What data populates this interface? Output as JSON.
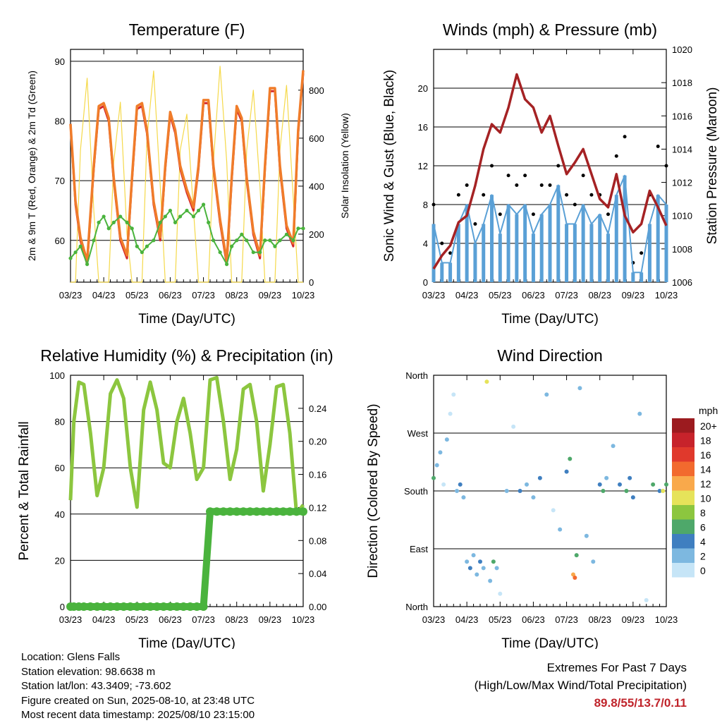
{
  "x_ticks": [
    "03/23",
    "04/23",
    "05/23",
    "06/23",
    "07/23",
    "08/23",
    "09/23",
    "10/23"
  ],
  "chart_data": [
    {
      "id": "temp",
      "type": "line",
      "title": "Temperature (F)",
      "xlabel": "Time (Day/UTC)",
      "ylabel": "2m & 9m T (Red, Orange) & 2m Td (Green)",
      "y2label": "Solar Insolation (Yellow)",
      "ylim": [
        53,
        92
      ],
      "y_ticks": [
        60,
        70,
        80,
        90
      ],
      "y2lim": [
        0,
        970
      ],
      "y2_ticks": [
        0,
        200,
        400,
        600,
        800
      ],
      "x": [
        0,
        0.15,
        0.3,
        0.5,
        0.7,
        0.85,
        1.0,
        1.15,
        1.3,
        1.5,
        1.7,
        1.85,
        2.0,
        2.15,
        2.3,
        2.5,
        2.7,
        2.85,
        3.0,
        3.15,
        3.3,
        3.5,
        3.7,
        3.85,
        4.0,
        4.15,
        4.3,
        4.5,
        4.7,
        4.85,
        5.0,
        5.15,
        5.3,
        5.5,
        5.7,
        5.85,
        6.0,
        6.15,
        6.3,
        6.5,
        6.7,
        6.85,
        7.0
      ],
      "series": [
        {
          "name": "2m T",
          "color": "#d4262a",
          "values": [
            79.5,
            66,
            60,
            56,
            72,
            82,
            82.5,
            80,
            70,
            60,
            57,
            70,
            82,
            82.5,
            78,
            66,
            60,
            72,
            81,
            78,
            72,
            68,
            65,
            72,
            83,
            83,
            72,
            63,
            56,
            70,
            82,
            80,
            70,
            61,
            57,
            72,
            85,
            85,
            72,
            62,
            59,
            78,
            88
          ]
        },
        {
          "name": "9m T",
          "color": "#f07c2a",
          "values": [
            79.5,
            66.5,
            60.5,
            56.5,
            72.5,
            82.5,
            83,
            80.5,
            70.5,
            60.5,
            57.5,
            70.5,
            82.5,
            83,
            78.5,
            66.5,
            60.5,
            72.5,
            81.5,
            78.5,
            72.5,
            68.5,
            65.5,
            72.5,
            83.5,
            83.5,
            72.5,
            63.5,
            56.5,
            70.5,
            82.5,
            80.5,
            70.5,
            61.5,
            57.5,
            72.5,
            85.5,
            85.5,
            72.5,
            62.5,
            59.5,
            78.5,
            88.5
          ]
        },
        {
          "name": "2m Td",
          "color": "#4ab33d",
          "values": [
            57,
            58,
            59,
            56,
            60,
            63,
            64,
            62,
            63,
            64,
            63,
            62,
            59,
            58,
            59,
            60,
            63,
            64,
            65,
            63,
            64,
            65,
            64,
            65,
            66,
            63,
            60,
            58,
            56,
            59,
            60,
            61,
            60,
            58,
            58,
            60,
            60,
            59,
            60,
            61,
            60,
            62,
            62
          ]
        },
        {
          "name": "Solar",
          "color": "#f5d94a",
          "values": [
            0,
            0,
            550,
            850,
            300,
            0,
            0,
            0,
            500,
            750,
            200,
            0,
            0,
            0,
            600,
            880,
            400,
            0,
            0,
            0,
            550,
            700,
            300,
            0,
            0,
            0,
            500,
            900,
            500,
            0,
            0,
            0,
            550,
            800,
            400,
            0,
            0,
            0,
            550,
            820,
            350,
            0,
            0
          ],
          "axis": "y2"
        }
      ]
    },
    {
      "id": "wind",
      "type": "scatter",
      "title": "Winds (mph) & Pressure (mb)",
      "xlabel": "Time (Day/UTC)",
      "ylabel": "Sonic Wind & Gust (Blue, Black)",
      "y2label": "Station Pressure (Maroon)",
      "ylim": [
        0,
        24
      ],
      "y_ticks": [
        0,
        4,
        8,
        12,
        16,
        20
      ],
      "y2lim": [
        1006,
        1020
      ],
      "y2_ticks": [
        1006,
        1008,
        1010,
        1012,
        1014,
        1016,
        1018,
        1020
      ],
      "x": [
        0,
        0.25,
        0.5,
        0.75,
        1.0,
        1.25,
        1.5,
        1.75,
        2.0,
        2.25,
        2.5,
        2.75,
        3.0,
        3.25,
        3.5,
        3.75,
        4.0,
        4.25,
        4.5,
        4.75,
        5.0,
        5.25,
        5.5,
        5.75,
        6.0,
        6.25,
        6.5,
        6.75,
        7.0
      ],
      "series": [
        {
          "name": "Gust",
          "color": "#000000",
          "values": [
            8,
            4,
            3,
            9,
            10,
            6,
            9,
            12,
            7,
            11,
            10,
            11,
            7,
            10,
            10,
            12,
            9,
            8,
            11,
            9,
            9,
            7,
            13,
            15,
            2,
            3,
            9,
            14,
            12
          ]
        },
        {
          "name": "Sonic Wind",
          "color": "#5aa0d6",
          "values": [
            6,
            2,
            2,
            6,
            8,
            4,
            6,
            9,
            5,
            8,
            7,
            8,
            5,
            7,
            8,
            10,
            6,
            6,
            8,
            6,
            7,
            5,
            9,
            11,
            1,
            1,
            6,
            9,
            8
          ]
        },
        {
          "name": "Pressure",
          "color": "#a52224",
          "values": [
            1006.8,
            1007.6,
            1008.2,
            1009.6,
            1010.0,
            1011.8,
            1014.0,
            1015.5,
            1015.0,
            1016.5,
            1018.5,
            1017.0,
            1016.5,
            1015.0,
            1016.0,
            1014.2,
            1012.5,
            1013.2,
            1014.0,
            1012.5,
            1011.0,
            1010.5,
            1012.5,
            1010.0,
            1009.0,
            1009.5,
            1011.5,
            1010.5,
            1009.4
          ],
          "axis": "y2"
        }
      ]
    },
    {
      "id": "rh",
      "type": "line",
      "title": "Relative Humidity (%) & Precipitation (in)",
      "xlabel": "Time (Day/UTC)",
      "ylabel": "Percent & Total Rainfall",
      "ylim": [
        0,
        100
      ],
      "y_ticks": [
        0,
        20,
        40,
        60,
        80,
        100
      ],
      "y2lim": [
        0,
        0.28
      ],
      "y2_ticks": [
        0.0,
        0.04,
        0.08,
        0.12,
        0.16,
        0.2,
        0.24
      ],
      "x": [
        0,
        0.1,
        0.25,
        0.4,
        0.6,
        0.8,
        1.0,
        1.2,
        1.4,
        1.6,
        1.8,
        2.0,
        2.2,
        2.4,
        2.6,
        2.8,
        3.0,
        3.2,
        3.4,
        3.6,
        3.8,
        4.0,
        4.2,
        4.4,
        4.6,
        4.8,
        5.0,
        5.2,
        5.4,
        5.6,
        5.8,
        6.0,
        6.2,
        6.4,
        6.6,
        6.8,
        7.0
      ],
      "series": [
        {
          "name": "RH",
          "color": "#8cc63f",
          "values": [
            46,
            80,
            97,
            96,
            75,
            48,
            60,
            92,
            98,
            90,
            60,
            43,
            85,
            97,
            85,
            62,
            60,
            80,
            90,
            75,
            55,
            60,
            98,
            99,
            80,
            55,
            68,
            94,
            96,
            80,
            50,
            70,
            95,
            96,
            75,
            40,
            44
          ]
        },
        {
          "name": "Total Precipitation",
          "color": "#4ab33d",
          "values": [
            0,
            0,
            0,
            0,
            0,
            0,
            0,
            0,
            0,
            0,
            0,
            0,
            0,
            0,
            0,
            0,
            0,
            0,
            0,
            0,
            0,
            0,
            0.115,
            0.115,
            0.115,
            0.115,
            0.115,
            0.115,
            0.115,
            0.115,
            0.115,
            0.115,
            0.115,
            0.115,
            0.115,
            0.115,
            0.115
          ],
          "axis": "y2"
        }
      ]
    },
    {
      "id": "dir",
      "type": "scatter",
      "title": "Wind Direction",
      "xlabel": "Time (Day/UTC)",
      "ylabel": "Direction (Colored By Speed)",
      "y_tick_labels": [
        "North",
        "East",
        "South",
        "West",
        "North"
      ],
      "ylim": [
        0,
        360
      ],
      "legend": {
        "title": "mph",
        "labels": [
          "20+",
          "18",
          "16",
          "14",
          "12",
          "10",
          "8",
          "6",
          "4",
          "2",
          "0"
        ],
        "colors": [
          "#9c1b1f",
          "#c7232b",
          "#e0392c",
          "#f26a2e",
          "#f9a94b",
          "#e6e35a",
          "#8cc63f",
          "#4ea86a",
          "#3f7fc0",
          "#7db8e0",
          "#c6e5f7"
        ],
        "position": "right"
      },
      "points": [
        {
          "x": 0.0,
          "dir": 200,
          "spd": 6
        },
        {
          "x": 0.1,
          "dir": 220,
          "spd": 3
        },
        {
          "x": 0.2,
          "dir": 240,
          "spd": 2
        },
        {
          "x": 0.3,
          "dir": 190,
          "spd": 1
        },
        {
          "x": 0.4,
          "dir": 260,
          "spd": 2
        },
        {
          "x": 0.5,
          "dir": 300,
          "spd": 1
        },
        {
          "x": 0.6,
          "dir": 330,
          "spd": 1
        },
        {
          "x": 0.7,
          "dir": 180,
          "spd": 3
        },
        {
          "x": 0.8,
          "dir": 190,
          "spd": 4
        },
        {
          "x": 0.9,
          "dir": 170,
          "spd": 3
        },
        {
          "x": 1.0,
          "dir": 70,
          "spd": 2
        },
        {
          "x": 1.1,
          "dir": 60,
          "spd": 4
        },
        {
          "x": 1.2,
          "dir": 80,
          "spd": 3
        },
        {
          "x": 1.3,
          "dir": 50,
          "spd": 2
        },
        {
          "x": 1.4,
          "dir": 70,
          "spd": 4
        },
        {
          "x": 1.5,
          "dir": 60,
          "spd": 3
        },
        {
          "x": 1.6,
          "dir": 350,
          "spd": 10
        },
        {
          "x": 1.7,
          "dir": 40,
          "spd": 2
        },
        {
          "x": 1.8,
          "dir": 70,
          "spd": 6
        },
        {
          "x": 1.9,
          "dir": 60,
          "spd": 3
        },
        {
          "x": 2.0,
          "dir": 20,
          "spd": 1
        },
        {
          "x": 2.2,
          "dir": 180,
          "spd": 2
        },
        {
          "x": 2.4,
          "dir": 280,
          "spd": 1
        },
        {
          "x": 2.6,
          "dir": 180,
          "spd": 4
        },
        {
          "x": 2.8,
          "dir": 190,
          "spd": 3
        },
        {
          "x": 3.0,
          "dir": 170,
          "spd": 2
        },
        {
          "x": 3.2,
          "dir": 200,
          "spd": 4
        },
        {
          "x": 3.4,
          "dir": 330,
          "spd": 2
        },
        {
          "x": 3.6,
          "dir": 150,
          "spd": 1
        },
        {
          "x": 3.8,
          "dir": 120,
          "spd": 2
        },
        {
          "x": 4.0,
          "dir": 210,
          "spd": 4
        },
        {
          "x": 4.1,
          "dir": 230,
          "spd": 6
        },
        {
          "x": 4.2,
          "dir": 50,
          "spd": 12
        },
        {
          "x": 4.25,
          "dir": 45,
          "spd": 14
        },
        {
          "x": 4.3,
          "dir": 80,
          "spd": 6
        },
        {
          "x": 4.4,
          "dir": 340,
          "spd": 2
        },
        {
          "x": 4.6,
          "dir": 110,
          "spd": 2
        },
        {
          "x": 4.8,
          "dir": 70,
          "spd": 3
        },
        {
          "x": 5.0,
          "dir": 190,
          "spd": 4
        },
        {
          "x": 5.1,
          "dir": 180,
          "spd": 6
        },
        {
          "x": 5.2,
          "dir": 200,
          "spd": 3
        },
        {
          "x": 5.4,
          "dir": 250,
          "spd": 2
        },
        {
          "x": 5.6,
          "dir": 190,
          "spd": 4
        },
        {
          "x": 5.8,
          "dir": 180,
          "spd": 6
        },
        {
          "x": 5.9,
          "dir": 200,
          "spd": 5
        },
        {
          "x": 6.0,
          "dir": 170,
          "spd": 4
        },
        {
          "x": 6.2,
          "dir": 300,
          "spd": 2
        },
        {
          "x": 6.4,
          "dir": 10,
          "spd": 1
        },
        {
          "x": 6.6,
          "dir": 190,
          "spd": 6
        },
        {
          "x": 6.8,
          "dir": 180,
          "spd": 4
        },
        {
          "x": 6.9,
          "dir": 180,
          "spd": 10
        },
        {
          "x": 7.0,
          "dir": 190,
          "spd": 6
        }
      ]
    }
  ],
  "info": {
    "location": "Location: Glens Falls",
    "elevation": "Station elevation: 98.6638 m",
    "latlon": "Station lat/lon: 43.3409; -73.602",
    "created": "Figure created on Sun, 2025-08-10, at 23:48 UTC",
    "recent": "Most recent data timestamp: 2025/08/10 23:15:00"
  },
  "extremes": {
    "title": "Extremes For Past 7 Days",
    "subtitle": "(High/Low/Max Wind/Total Precipitation)",
    "values": "89.8/55/13.7/0.11"
  }
}
